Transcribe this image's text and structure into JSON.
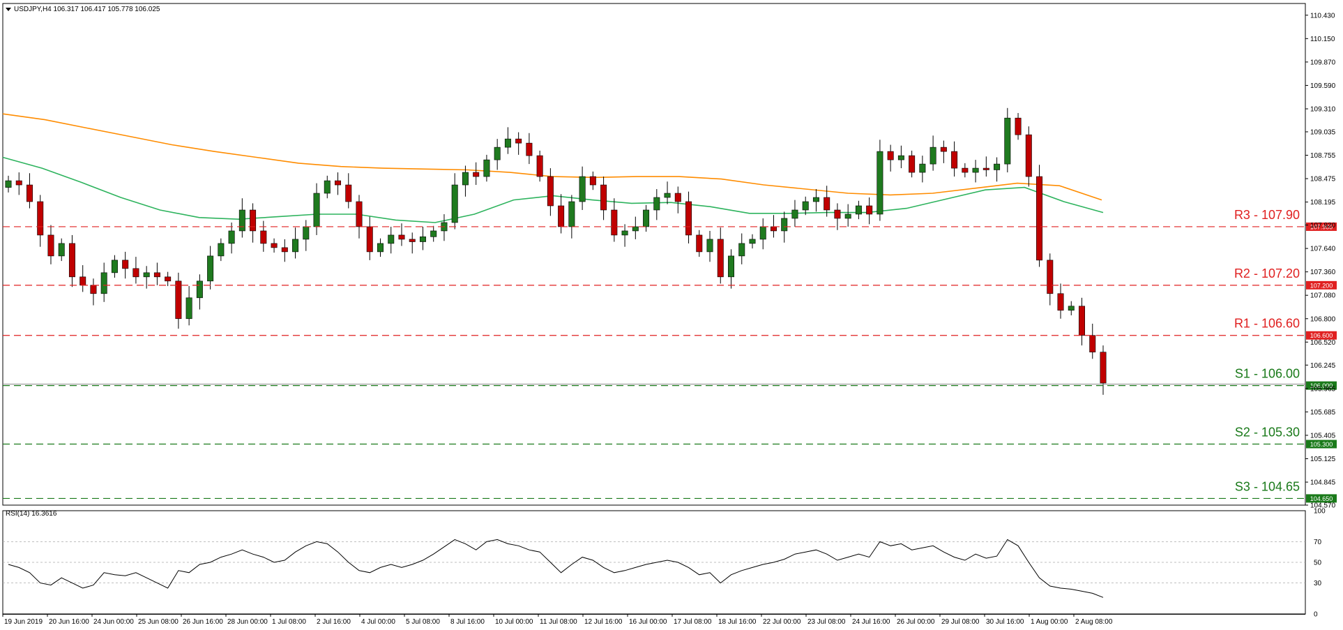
{
  "header": {
    "symbol": "USDJPY,H4",
    "ohlc": "106.317 106.417 105.778 106.025"
  },
  "rsi_header": {
    "label": "RSI(14) 16.3616"
  },
  "colors": {
    "bull_candle": "#1f7a1f",
    "bear_candle": "#c00000",
    "ma_slow": "#ff8c00",
    "ma_fast": "#2db35d",
    "resistance": "#e02020",
    "support": "#1a7a1a",
    "rsi_line": "#000000"
  },
  "chart_data": [
    {
      "type": "candlestick",
      "title": "USDJPY,H4",
      "y_axis_ticks": [
        "110.430",
        "110.150",
        "109.870",
        "109.590",
        "109.310",
        "109.035",
        "108.755",
        "108.475",
        "108.195",
        "107.920",
        "107.640",
        "107.360",
        "107.080",
        "106.800",
        "106.520",
        "106.245",
        "105.965",
        "105.685",
        "105.405",
        "105.125",
        "104.845",
        "104.570"
      ],
      "ylim": [
        104.57,
        110.57
      ],
      "x_tick_labels": [
        "19 Jun 2019",
        "20 Jun 16:00",
        "24 Jun 00:00",
        "25 Jun 08:00",
        "26 Jun 16:00",
        "28 Jun 00:00",
        "1 Jul 08:00",
        "2 Jul 16:00",
        "4 Jul 00:00",
        "5 Jul 08:00",
        "8 Jul 16:00",
        "10 Jul 00:00",
        "11 Jul 08:00",
        "12 Jul 16:00",
        "16 Jul 00:00",
        "17 Jul 08:00",
        "18 Jul 16:00",
        "22 Jul 00:00",
        "23 Jul 08:00",
        "24 Jul 16:00",
        "26 Jul 00:00",
        "29 Jul 08:00",
        "30 Jul 16:00",
        "1 Aug 00:00",
        "2 Aug 08:00"
      ],
      "levels": [
        {
          "name": "R3 - 107.90",
          "value": 107.9,
          "tag": "107.900",
          "kind": "resistance"
        },
        {
          "name": "R2 - 107.20",
          "value": 107.2,
          "tag": "107.200",
          "kind": "resistance"
        },
        {
          "name": "R1 - 106.60",
          "value": 106.6,
          "tag": "106.600",
          "kind": "resistance"
        },
        {
          "name": "S1 - 106.00",
          "value": 106.0,
          "tag": "106.000",
          "kind": "support"
        },
        {
          "name": "S2 - 105.30",
          "value": 105.3,
          "tag": "105.300",
          "kind": "support"
        },
        {
          "name": "S3 - 104.65",
          "value": 104.65,
          "tag": "104.650",
          "kind": "support"
        }
      ],
      "close_path": [
        108.45,
        108.4,
        108.2,
        107.8,
        107.55,
        107.7,
        107.3,
        107.2,
        107.1,
        107.35,
        107.5,
        107.4,
        107.3,
        107.35,
        107.3,
        107.25,
        106.8,
        107.05,
        107.25,
        107.55,
        107.7,
        107.85,
        108.1,
        107.85,
        107.7,
        107.65,
        107.6,
        107.75,
        107.9,
        108.3,
        108.45,
        108.4,
        108.2,
        107.9,
        107.6,
        107.7,
        107.8,
        107.75,
        107.72,
        107.78,
        107.85,
        107.95,
        108.4,
        108.55,
        108.5,
        108.7,
        108.85,
        108.95,
        108.9,
        108.75,
        108.5,
        108.15,
        107.9,
        108.2,
        108.5,
        108.4,
        108.1,
        107.8,
        107.85,
        107.9,
        108.1,
        108.25,
        108.3,
        108.2,
        107.8,
        107.6,
        107.75,
        107.3,
        107.55,
        107.7,
        107.75,
        107.9,
        107.85,
        108.0,
        108.1,
        108.2,
        108.25,
        108.1,
        108.0,
        108.05,
        108.15,
        108.05,
        108.8,
        108.7,
        108.75,
        108.55,
        108.65,
        108.85,
        108.8,
        108.6,
        108.55,
        108.6,
        108.58,
        108.65,
        109.2,
        109.0,
        108.5,
        107.5,
        107.1,
        106.9,
        106.95,
        106.6,
        106.4,
        106.03
      ],
      "ma_slow_path": [
        109.25,
        109.18,
        109.08,
        108.98,
        108.88,
        108.8,
        108.73,
        108.66,
        108.62,
        108.6,
        108.59,
        108.58,
        108.55,
        108.5,
        108.49,
        108.5,
        108.5,
        108.47,
        108.4,
        108.35,
        108.3,
        108.28,
        108.3,
        108.36,
        108.42,
        108.39,
        108.22
      ],
      "ma_fast_path": [
        108.73,
        108.6,
        108.43,
        108.25,
        108.1,
        108.01,
        107.99,
        108.02,
        108.05,
        108.05,
        107.98,
        107.95,
        108.05,
        108.22,
        108.27,
        108.22,
        108.18,
        108.19,
        108.14,
        108.06,
        108.06,
        108.07,
        108.07,
        108.12,
        108.23,
        108.34,
        108.37,
        108.2,
        108.07
      ]
    },
    {
      "type": "line",
      "title": "RSI(14) 16.3616",
      "y_axis_ticks": [
        "100",
        "70",
        "50",
        "30",
        "0"
      ],
      "ylim": [
        0,
        100
      ],
      "levels": [
        70,
        50,
        30
      ],
      "series": [
        {
          "values": [
            48,
            45,
            40,
            30,
            28,
            35,
            30,
            25,
            28,
            40,
            38,
            37,
            40,
            35,
            30,
            25,
            42,
            40,
            48,
            50,
            55,
            58,
            62,
            58,
            55,
            50,
            52,
            60,
            66,
            70,
            68,
            60,
            50,
            42,
            40,
            45,
            48,
            45,
            48,
            52,
            58,
            65,
            72,
            68,
            62,
            70,
            72,
            68,
            66,
            62,
            60,
            50,
            40,
            48,
            55,
            52,
            45,
            40,
            42,
            45,
            48,
            50,
            52,
            50,
            45,
            38,
            40,
            30,
            38,
            42,
            45,
            48,
            50,
            53,
            58,
            60,
            62,
            58,
            52,
            55,
            58,
            55,
            70,
            66,
            68,
            62,
            64,
            66,
            60,
            55,
            52,
            58,
            54,
            56,
            72,
            66,
            50,
            35,
            27,
            25,
            24,
            22,
            20,
            16
          ]
        }
      ]
    }
  ]
}
